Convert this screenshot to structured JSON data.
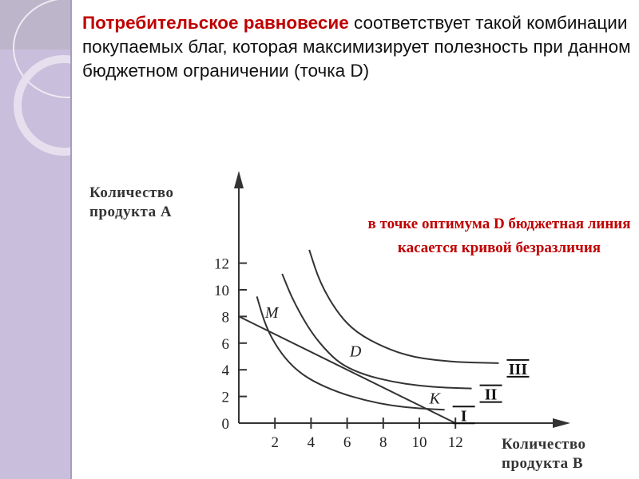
{
  "title": {
    "highlight": "Потребительское равновесие",
    "rest": " соответствует такой комбинации покупаемых благ, которая максимизирует полезность при данном бюджетном ограничении (точка D)"
  },
  "note": "в точке оптимума D бюджетная линия касается кривой безразличия",
  "colors": {
    "title_accent": "#c00000",
    "note": "#c00000",
    "sidebar": "#c9bedb"
  },
  "chart_data": {
    "type": "line",
    "ylabel": "Количество продукта А",
    "xlabel": "Количество продукта В",
    "xlim": [
      0,
      14
    ],
    "ylim": [
      0,
      12
    ],
    "xticks": [
      "2",
      "4",
      "6",
      "8",
      "10",
      "12"
    ],
    "yticks": [
      "0",
      "2",
      "4",
      "6",
      "8",
      "10",
      "12"
    ],
    "budget_line": {
      "x": [
        0,
        12
      ],
      "y": [
        8,
        0
      ]
    },
    "series": [
      {
        "name": "I",
        "x": [
          1,
          1.5,
          2.2,
          3,
          4,
          5.5,
          7,
          8.5,
          10,
          11.4
        ],
        "y": [
          9.5,
          7.2,
          5.5,
          4.2,
          3.2,
          2.3,
          1.7,
          1.3,
          1.1,
          1.0
        ]
      },
      {
        "name": "II",
        "x": [
          2.4,
          3,
          4,
          5,
          5.8,
          7,
          8.5,
          10,
          11.5,
          12.9
        ],
        "y": [
          11.2,
          9.2,
          6.8,
          5.2,
          4.3,
          3.6,
          3.1,
          2.8,
          2.65,
          2.6
        ]
      },
      {
        "name": "III",
        "x": [
          3.9,
          4.5,
          5.5,
          6.5,
          8,
          9.5,
          11,
          12.5,
          14.4
        ],
        "y": [
          13,
          10.5,
          8.2,
          6.8,
          5.7,
          5.0,
          4.7,
          4.55,
          4.5
        ]
      }
    ],
    "points": [
      {
        "label": "M",
        "x": 1.1,
        "y": 7.3
      },
      {
        "label": "D",
        "x": 5.7,
        "y": 4.4
      },
      {
        "label": "K",
        "x": 11,
        "y": 1.0
      }
    ]
  }
}
